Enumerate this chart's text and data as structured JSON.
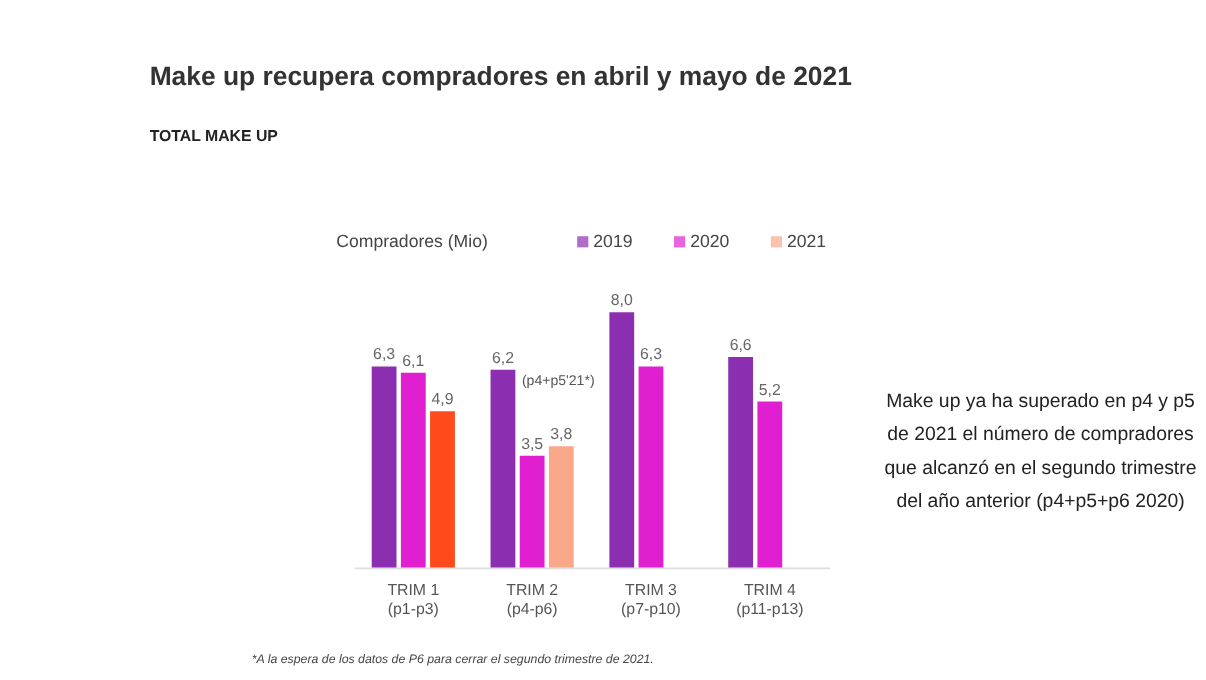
{
  "chart_data": {
    "type": "bar",
    "title": "Make up recupera compradores en abril y mayo de 2021",
    "subtitle": "TOTAL MAKE UP",
    "ylabel": "Compradores (Mio)",
    "categories": [
      "TRIM 1\n(p1-p3)",
      "TRIM 2\n(p4-p6)",
      "TRIM 3\n(p7-p10)",
      "TRIM 4\n(p11-p13)"
    ],
    "series": [
      {
        "name": "2019",
        "color": "#8b2fb0",
        "values": [
          6.3,
          6.2,
          8.0,
          6.6
        ],
        "value_labels": [
          "6,3",
          "6,2",
          "8,0",
          "6,6"
        ]
      },
      {
        "name": "2020",
        "color": "#e020d0",
        "values": [
          6.1,
          3.5,
          6.3,
          5.2
        ],
        "value_labels": [
          "6,1",
          "3,5",
          "6,3",
          "5,2"
        ]
      },
      {
        "name": "2021",
        "color": "#f9a98a",
        "colors": [
          "#ff4a1c",
          "#f9a98a",
          null,
          null
        ],
        "values": [
          4.9,
          3.8,
          null,
          null
        ],
        "value_labels": [
          "4,9",
          "3,8",
          null,
          null
        ]
      }
    ],
    "legend": "top",
    "grid": false,
    "annotations": [
      "(p4+p5'21*)",
      "Make up ya ha superado en p4 y p5\nde 2021 el número de compradores\nque alcanzó en el segundo trimestre\ndel año anterior (p4+p5+p6 2020)",
      "*A la espera de los datos de P6 para cerrar el segundo trimestre de 2021."
    ]
  }
}
